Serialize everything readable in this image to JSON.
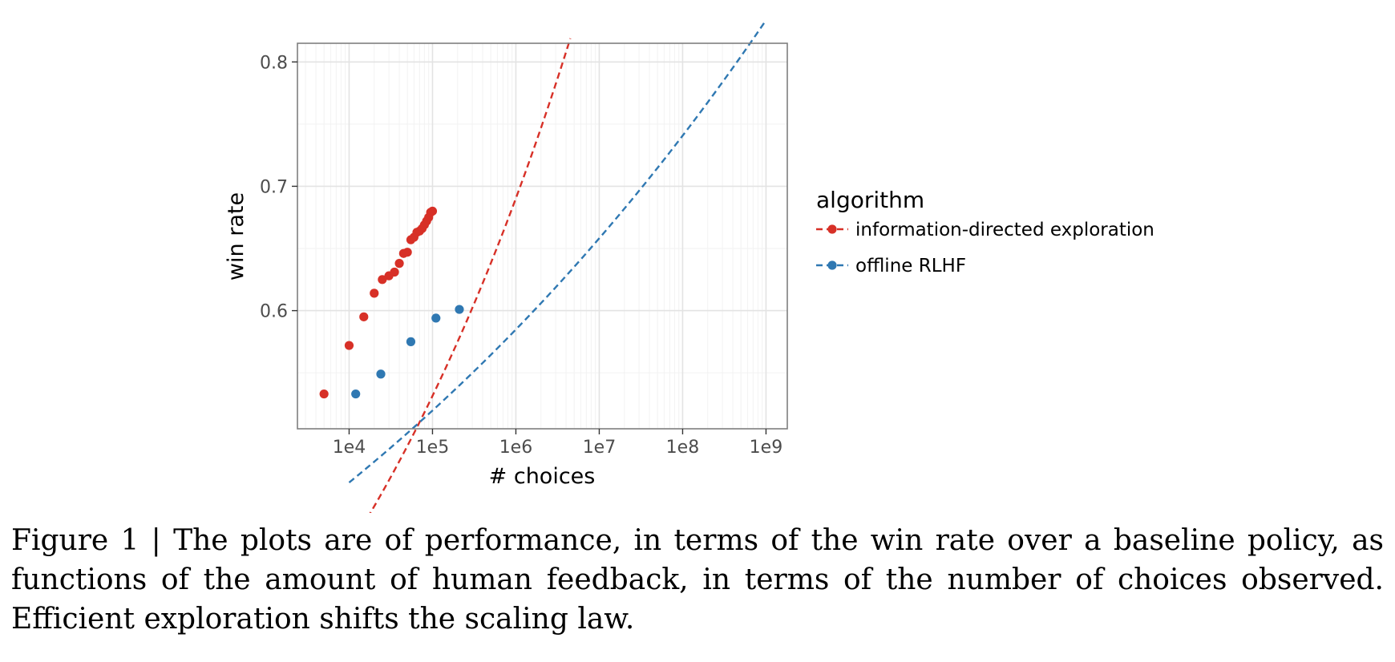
{
  "chart_data": {
    "type": "scatter",
    "xlabel": "# choices",
    "ylabel": "win rate",
    "x_scale": "log10",
    "xlim": [
      2400,
      1800000000
    ],
    "ylim": [
      0.505,
      0.815
    ],
    "x_ticks": [
      {
        "value": 10000,
        "label": "1e4"
      },
      {
        "value": 100000,
        "label": "1e5"
      },
      {
        "value": 1000000,
        "label": "1e6"
      },
      {
        "value": 10000000,
        "label": "1e7"
      },
      {
        "value": 100000000,
        "label": "1e8"
      },
      {
        "value": 1000000000,
        "label": "1e9"
      }
    ],
    "y_ticks": [
      {
        "value": 0.6,
        "label": "0.6"
      },
      {
        "value": 0.7,
        "label": "0.7"
      },
      {
        "value": 0.8,
        "label": "0.8"
      }
    ],
    "grid": true,
    "legend_title": "algorithm",
    "legend_position": "right",
    "series": [
      {
        "name": "information-directed exploration",
        "color": "#d73027",
        "points": [
          {
            "x": 5000,
            "y": 0.533
          },
          {
            "x": 10000,
            "y": 0.572
          },
          {
            "x": 15000,
            "y": 0.595
          },
          {
            "x": 20000,
            "y": 0.614
          },
          {
            "x": 25000,
            "y": 0.625
          },
          {
            "x": 30000,
            "y": 0.628
          },
          {
            "x": 35000,
            "y": 0.631
          },
          {
            "x": 40000,
            "y": 0.638
          },
          {
            "x": 45000,
            "y": 0.646
          },
          {
            "x": 50000,
            "y": 0.647
          },
          {
            "x": 55000,
            "y": 0.657
          },
          {
            "x": 60000,
            "y": 0.659
          },
          {
            "x": 65000,
            "y": 0.663
          },
          {
            "x": 70000,
            "y": 0.664
          },
          {
            "x": 75000,
            "y": 0.666
          },
          {
            "x": 80000,
            "y": 0.669
          },
          {
            "x": 85000,
            "y": 0.672
          },
          {
            "x": 90000,
            "y": 0.675
          },
          {
            "x": 95000,
            "y": 0.679
          },
          {
            "x": 100000,
            "y": 0.68
          }
        ],
        "fit": {
          "type": "power",
          "a": 0.1437,
          "b": 0.1136,
          "x_range": [
            3500,
            4500000
          ]
        }
      },
      {
        "name": "offline RLHF",
        "color": "#2f78b2",
        "points": [
          {
            "x": 12000,
            "y": 0.533
          },
          {
            "x": 24000,
            "y": 0.549
          },
          {
            "x": 55000,
            "y": 0.575
          },
          {
            "x": 110000,
            "y": 0.594
          },
          {
            "x": 210000,
            "y": 0.601
          }
        ],
        "fit": {
          "type": "power",
          "a": 0.2879,
          "b": 0.0513,
          "x_range": [
            10000,
            1000000000
          ]
        }
      }
    ]
  },
  "caption": "Figure 1 | The plots are of performance, in terms of the win rate over a baseline policy, as functions of the amount of human feedback, in terms of the number of choices observed. Efficient exploration shifts the scaling law."
}
